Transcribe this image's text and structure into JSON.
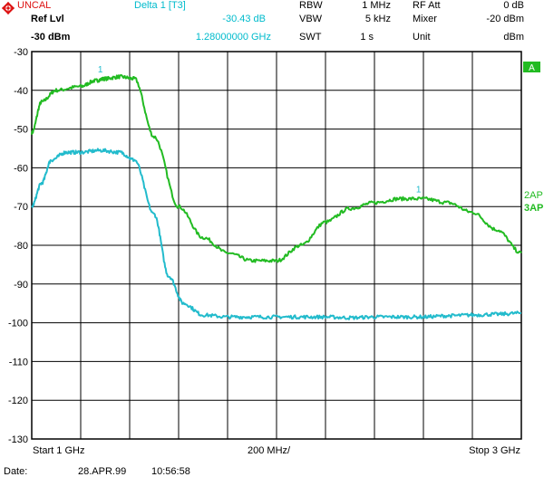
{
  "header": {
    "uncal": "UNCAL",
    "ref_lvl_label": "Ref Lvl",
    "ref_lvl_value": "-30 dBm",
    "marker_title": "Delta 1 [T3]",
    "marker_level": "-30.43 dB",
    "marker_freq": "1.28000000 GHz",
    "rbw_label": "RBW",
    "rbw_value": "1 MHz",
    "vbw_label": "VBW",
    "vbw_value": "5 kHz",
    "swt_label": "SWT",
    "swt_value": "1 s",
    "rfatt_label": "RF Att",
    "rfatt_value": "0 dB",
    "mixer_label": "Mixer",
    "mixer_value": "-20 dBm",
    "unit_label": "Unit",
    "unit_value": "dBm"
  },
  "side": {
    "trace_a_badge": "A",
    "trace2_label": "2AP",
    "trace3_label": "3AP"
  },
  "footer": {
    "start": "Start 1 GHz",
    "span_per_div": "200 MHz/",
    "stop": "Stop 3 GHz",
    "date_label": "Date:",
    "date_value": "28.APR.99",
    "time_value": "10:56:58"
  },
  "colors": {
    "trace_green": "#22bb22",
    "trace_cyan": "#22bbcc",
    "header_accent": "#00bbcc",
    "uncal_red": "#dd1111",
    "grid": "#000000"
  },
  "chart_data": {
    "type": "line",
    "x_unit": "GHz",
    "xlim": [
      1,
      3
    ],
    "ylim": [
      -130,
      -30
    ],
    "y_ticks": [
      "-30",
      "-40",
      "-50",
      "-60",
      "-70",
      "-80",
      "-90",
      "-100",
      "-110",
      "-120",
      "-130"
    ],
    "grid": true,
    "series": [
      {
        "name": "2AP",
        "color": "#22bb22",
        "x": [
          1.0,
          1.04,
          1.1,
          1.2,
          1.26,
          1.3,
          1.36,
          1.42,
          1.5,
          1.6,
          1.7,
          1.8,
          1.9,
          2.0,
          2.1,
          2.2,
          2.3,
          2.4,
          2.5,
          2.6,
          2.7,
          2.8,
          2.9,
          3.0
        ],
        "y": [
          -51,
          -43,
          -40,
          -39,
          -37.5,
          -37,
          -36.5,
          -37,
          -52,
          -70,
          -78,
          -82,
          -84,
          -84,
          -80,
          -74,
          -70.5,
          -69,
          -68,
          -68,
          -69,
          -71.5,
          -76,
          -82
        ]
      },
      {
        "name": "3AP",
        "color": "#22bbcc",
        "x": [
          1.0,
          1.04,
          1.08,
          1.14,
          1.2,
          1.28,
          1.36,
          1.42,
          1.5,
          1.56,
          1.62,
          1.7,
          1.8,
          1.9,
          2.0,
          2.1,
          2.2,
          2.3,
          2.4,
          2.5,
          2.6,
          2.7,
          2.8,
          2.9,
          3.0
        ],
        "y": [
          -70,
          -64,
          -58,
          -56,
          -56,
          -55.5,
          -56,
          -58,
          -72,
          -88,
          -95,
          -98,
          -98.5,
          -98.5,
          -98.5,
          -98.5,
          -98.5,
          -98.7,
          -98.5,
          -98.5,
          -98.5,
          -98.2,
          -98,
          -97.8,
          -97.5
        ]
      }
    ],
    "markers": [
      {
        "label": "1",
        "series": "2AP",
        "x": 1.28,
        "y": -37
      },
      {
        "label": "1",
        "series": "2AP",
        "x": 2.58,
        "y": -68
      }
    ]
  }
}
